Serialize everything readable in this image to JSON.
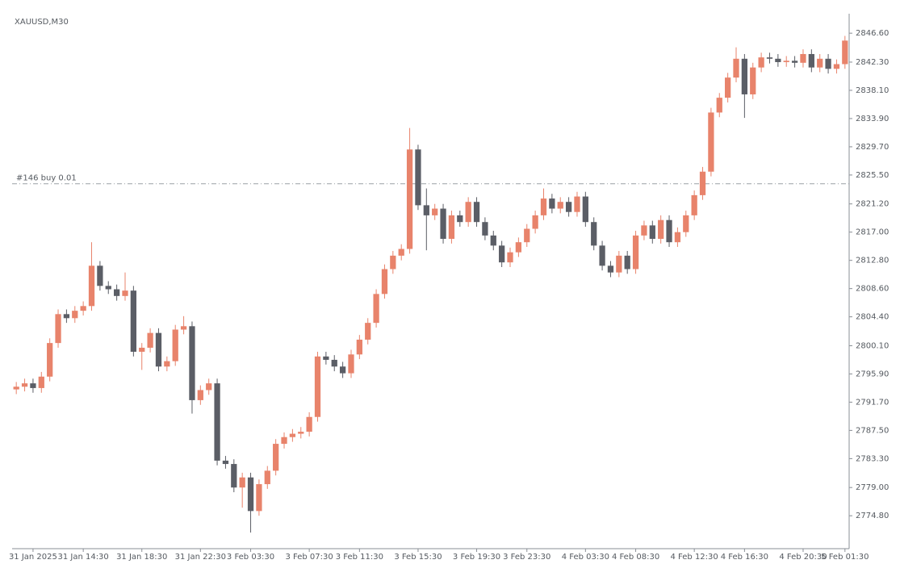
{
  "chart_data": {
    "type": "candlestick",
    "title": "XAUUSD,M30",
    "up_color": "#e8836b",
    "down_color": "#5b5e66",
    "ylim": [
      2769.9,
      2849.5
    ],
    "yticks": [
      {
        "value": 2846.6,
        "label": "2846.60"
      },
      {
        "value": 2842.3,
        "label": "2842.30"
      },
      {
        "value": 2838.1,
        "label": "2838.10"
      },
      {
        "value": 2833.9,
        "label": "2833.90"
      },
      {
        "value": 2829.7,
        "label": "2829.70"
      },
      {
        "value": 2825.5,
        "label": "2825.50"
      },
      {
        "value": 2821.2,
        "label": "2821.20"
      },
      {
        "value": 2817,
        "label": "2817.00"
      },
      {
        "value": 2812.8,
        "label": "2812.80"
      },
      {
        "value": 2808.6,
        "label": "2808.60"
      },
      {
        "value": 2804.4,
        "label": "2804.40"
      },
      {
        "value": 2800.1,
        "label": "2800.10"
      },
      {
        "value": 2795.9,
        "label": "2795.90"
      },
      {
        "value": 2791.7,
        "label": "2791.70"
      },
      {
        "value": 2787.5,
        "label": "2787.50"
      },
      {
        "value": 2783.3,
        "label": "2783.30"
      },
      {
        "value": 2779,
        "label": "2779.00"
      },
      {
        "value": 2774.8,
        "label": "2774.80"
      }
    ],
    "order_line": {
      "label": "#146 buy 0.01",
      "value": 2824.2
    },
    "categories": [
      null,
      null,
      "31 Jan 2025",
      null,
      null,
      null,
      null,
      null,
      "31 Jan 14:30",
      null,
      null,
      null,
      null,
      null,
      null,
      "31 Jan 18:30",
      null,
      null,
      null,
      null,
      null,
      null,
      "31 Jan 22:30",
      null,
      null,
      null,
      null,
      null,
      "3 Feb 03:30",
      null,
      null,
      null,
      null,
      null,
      null,
      "3 Feb 07:30",
      null,
      null,
      null,
      null,
      null,
      "3 Feb 11:30",
      null,
      null,
      null,
      null,
      null,
      null,
      "3 Feb 15:30",
      null,
      null,
      null,
      null,
      null,
      null,
      "3 Feb 19:30",
      null,
      null,
      null,
      null,
      null,
      "3 Feb 23:30",
      null,
      null,
      null,
      null,
      null,
      null,
      "4 Feb 03:30",
      null,
      null,
      null,
      null,
      null,
      "4 Feb 08:30",
      null,
      null,
      null,
      null,
      null,
      null,
      "4 Feb 12:30",
      null,
      null,
      null,
      null,
      null,
      "4 Feb 16:30",
      null,
      null,
      null,
      null,
      null,
      null,
      "4 Feb 20:30",
      null,
      null,
      null,
      null,
      "5 Feb 01:30"
    ],
    "open": [
      2793.6,
      2794.0,
      2794.5,
      2793.8,
      2795.5,
      2800.5,
      2804.8,
      2804.2,
      2805.3,
      2806.0,
      2812.0,
      2809.0,
      2808.5,
      2807.5,
      2808.3,
      2799.2,
      2799.8,
      2802.0,
      2797.0,
      2797.8,
      2802.5,
      2803.0,
      2792.0,
      2793.5,
      2794.5,
      2783.0,
      2782.5,
      2779.0,
      2780.5,
      2775.5,
      2779.5,
      2781.5,
      2785.5,
      2786.5,
      2787.0,
      2787.3,
      2789.5,
      2798.5,
      2798.0,
      2797.0,
      2796.0,
      2798.8,
      2801.0,
      2803.5,
      2807.8,
      2811.5,
      2813.5,
      2814.5,
      2829.3,
      2821.0,
      2819.5,
      2820.5,
      2816.0,
      2819.5,
      2818.5,
      2821.5,
      2818.5,
      2816.5,
      2815.0,
      2812.5,
      2814.0,
      2815.5,
      2817.5,
      2819.5,
      2822.0,
      2820.5,
      2821.5,
      2820.0,
      2822.3,
      2818.5,
      2815.0,
      2812.0,
      2811.0,
      2813.5,
      2811.5,
      2816.5,
      2818.0,
      2816.0,
      2818.8,
      2815.5,
      2817.0,
      2819.5,
      2822.5,
      2826.0,
      2834.8,
      2837.0,
      2840.0,
      2842.8,
      2837.5,
      2841.5,
      2843.0,
      2842.8,
      2842.3,
      2842.5,
      2842.2,
      2843.5,
      2841.5,
      2842.8,
      2841.3,
      2842.0
    ],
    "high": [
      2794.7,
      2795.2,
      2795.2,
      2796.2,
      2801.2,
      2805.5,
      2805.5,
      2806.0,
      2806.7,
      2815.5,
      2812.7,
      2809.7,
      2809.2,
      2811.0,
      2809.0,
      2800.5,
      2802.7,
      2802.7,
      2798.5,
      2803.2,
      2804.5,
      2803.7,
      2794.2,
      2795.2,
      2795.2,
      2783.7,
      2783.2,
      2781.2,
      2781.2,
      2780.2,
      2782.2,
      2786.2,
      2787.2,
      2787.7,
      2788.0,
      2790.2,
      2799.2,
      2799.2,
      2798.7,
      2797.7,
      2799.5,
      2801.7,
      2804.2,
      2808.5,
      2812.2,
      2814.2,
      2815.2,
      2832.5,
      2830.0,
      2823.5,
      2821.2,
      2821.2,
      2820.2,
      2820.2,
      2822.2,
      2822.2,
      2819.2,
      2817.2,
      2815.7,
      2814.7,
      2816.2,
      2818.2,
      2820.2,
      2823.5,
      2822.7,
      2822.2,
      2822.2,
      2823.0,
      2823.0,
      2819.2,
      2815.7,
      2812.7,
      2814.2,
      2814.2,
      2817.2,
      2818.7,
      2818.7,
      2819.5,
      2819.5,
      2817.7,
      2820.2,
      2823.2,
      2826.7,
      2835.5,
      2837.7,
      2840.7,
      2844.5,
      2843.5,
      2842.2,
      2843.7,
      2843.7,
      2843.5,
      2843.2,
      2843.2,
      2844.2,
      2844.2,
      2843.5,
      2843.5,
      2842.7,
      2846.2
    ],
    "low": [
      2792.9,
      2793.3,
      2793.1,
      2793.1,
      2794.8,
      2799.8,
      2803.5,
      2803.5,
      2804.6,
      2805.3,
      2808.3,
      2807.8,
      2806.8,
      2806.8,
      2798.5,
      2796.5,
      2799.1,
      2796.3,
      2796.3,
      2797.1,
      2801.8,
      2790.0,
      2791.3,
      2792.8,
      2782.3,
      2781.8,
      2778.3,
      2776.0,
      2772.3,
      2774.8,
      2778.8,
      2780.8,
      2784.8,
      2785.8,
      2786.3,
      2786.6,
      2788.8,
      2797.3,
      2796.3,
      2795.3,
      2795.3,
      2798.1,
      2800.3,
      2802.8,
      2807.1,
      2810.8,
      2812.8,
      2813.8,
      2820.3,
      2814.3,
      2818.8,
      2815.3,
      2815.3,
      2817.8,
      2817.8,
      2817.8,
      2815.8,
      2814.3,
      2811.8,
      2811.8,
      2813.3,
      2814.8,
      2816.8,
      2818.8,
      2819.8,
      2819.8,
      2819.3,
      2819.3,
      2817.8,
      2814.3,
      2811.3,
      2810.3,
      2810.3,
      2810.8,
      2810.8,
      2815.8,
      2815.3,
      2815.3,
      2814.8,
      2814.8,
      2816.3,
      2818.8,
      2821.8,
      2825.3,
      2834.1,
      2836.3,
      2839.3,
      2834.0,
      2836.8,
      2840.8,
      2842.1,
      2841.6,
      2841.6,
      2841.5,
      2841.5,
      2840.8,
      2840.8,
      2840.6,
      2840.6,
      2841.3
    ],
    "close": [
      2794.0,
      2794.5,
      2793.8,
      2795.5,
      2800.5,
      2804.8,
      2804.2,
      2805.3,
      2806.0,
      2812.0,
      2809.0,
      2808.5,
      2807.5,
      2808.3,
      2799.2,
      2799.8,
      2802.0,
      2797.0,
      2797.8,
      2802.5,
      2803.0,
      2792.0,
      2793.5,
      2794.5,
      2783.0,
      2782.5,
      2779.0,
      2780.5,
      2775.5,
      2779.5,
      2781.5,
      2785.5,
      2786.5,
      2787.0,
      2787.3,
      2789.5,
      2798.5,
      2798.0,
      2797.0,
      2796.0,
      2798.8,
      2801.0,
      2803.5,
      2807.8,
      2811.5,
      2813.5,
      2814.5,
      2829.3,
      2821.0,
      2819.5,
      2820.5,
      2816.0,
      2819.5,
      2818.5,
      2821.5,
      2818.5,
      2816.5,
      2815.0,
      2812.5,
      2814.0,
      2815.5,
      2817.5,
      2819.5,
      2822.0,
      2820.5,
      2821.5,
      2820.0,
      2822.3,
      2818.5,
      2815.0,
      2812.0,
      2811.0,
      2813.5,
      2811.5,
      2816.5,
      2818.0,
      2816.0,
      2818.8,
      2815.5,
      2817.0,
      2819.5,
      2822.5,
      2826.0,
      2834.8,
      2837.0,
      2840.0,
      2842.8,
      2837.5,
      2841.5,
      2843.0,
      2842.8,
      2842.3,
      2842.5,
      2842.2,
      2843.5,
      2841.5,
      2842.8,
      2841.3,
      2842.0,
      2845.5
    ]
  }
}
